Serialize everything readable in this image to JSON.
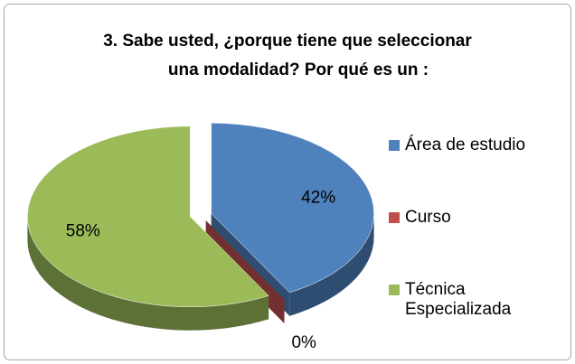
{
  "chart_data": {
    "type": "pie3d",
    "title": [
      "3. Sabe usted, ¿porque tiene  que seleccionar",
      "una  modalidad? Por qué es un :"
    ],
    "categories": [
      "Área de estudio",
      "Curso",
      "Técnica Especializada"
    ],
    "values": [
      42,
      0,
      58
    ],
    "value_labels": [
      "42%",
      "0%",
      "58%"
    ],
    "colors": [
      "#4f81bd",
      "#c0504d",
      "#9bbb59"
    ],
    "legend": "right"
  }
}
